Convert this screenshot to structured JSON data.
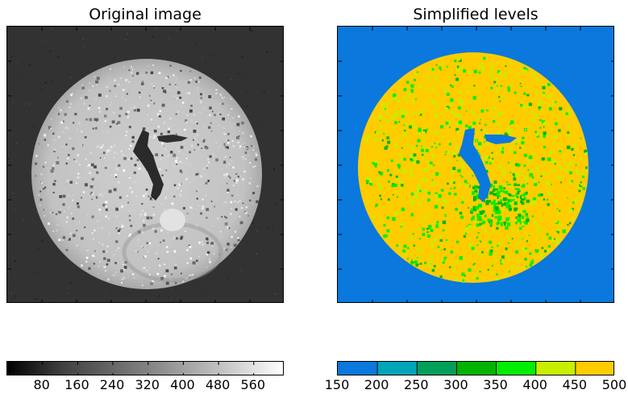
{
  "chart_data": [
    {
      "type": "heatmap",
      "title": "Original image",
      "xlabel": "",
      "ylabel": "",
      "colormap": "gray",
      "colorbar": {
        "orientation": "horizontal",
        "range": [
          0,
          630
        ],
        "ticks": [
          80,
          160,
          240,
          320,
          400,
          480,
          560
        ],
        "tick_labels": [
          "80",
          "160",
          "240",
          "320",
          "400",
          "480",
          "560"
        ]
      }
    },
    {
      "type": "heatmap",
      "title": "Simplified levels",
      "xlabel": "",
      "ylabel": "",
      "colorbar": {
        "orientation": "horizontal",
        "boundaries": [
          150,
          200,
          250,
          300,
          350,
          400,
          450,
          500
        ],
        "tick_labels": [
          "150",
          "200",
          "250",
          "300",
          "350",
          "400",
          "450",
          "500"
        ],
        "level_colors": [
          "#0a78dc",
          "#00a5b8",
          "#00a05a",
          "#00b400",
          "#00ee00",
          "#c8ee00",
          "#ffcc00"
        ]
      }
    }
  ]
}
